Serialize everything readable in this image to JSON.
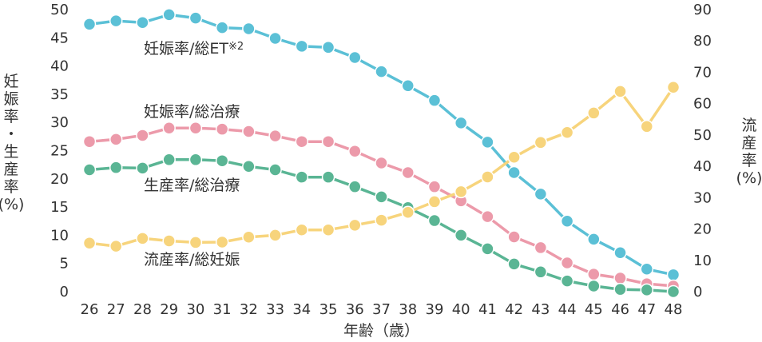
{
  "chart_data": {
    "type": "line",
    "x": [
      26,
      27,
      28,
      29,
      30,
      31,
      32,
      33,
      34,
      35,
      36,
      37,
      38,
      39,
      40,
      41,
      42,
      43,
      44,
      45,
      46,
      47,
      48
    ],
    "xlabel": "年齢（歳）",
    "ylabel_left_lines": [
      "妊",
      "娠",
      "率",
      "・",
      "生",
      "産",
      "率",
      "(%)"
    ],
    "ylabel_right_lines": [
      "流",
      "産",
      "率",
      "(%)"
    ],
    "ylim_left": [
      0,
      50
    ],
    "ylim_right": [
      0,
      90
    ],
    "left_ticks": [
      0,
      5,
      10,
      15,
      20,
      25,
      30,
      35,
      40,
      45,
      50
    ],
    "right_ticks": [
      0,
      10,
      20,
      30,
      40,
      50,
      60,
      70,
      80,
      90
    ],
    "grid": false,
    "series": [
      {
        "name": "妊娠率/総ET※2",
        "axis": "left",
        "color": "#5bc0d6",
        "values": [
          47.4,
          48.0,
          47.7,
          49.1,
          48.5,
          46.8,
          46.6,
          44.9,
          43.5,
          43.3,
          41.5,
          39.0,
          36.5,
          33.9,
          29.9,
          26.5,
          21.1,
          17.3,
          12.5,
          9.3,
          6.9,
          4.0,
          3.0
        ]
      },
      {
        "name": "妊娠率/総治療",
        "axis": "left",
        "color": "#ec9aaa",
        "values": [
          26.6,
          27.0,
          27.7,
          29.0,
          29.0,
          28.8,
          28.4,
          27.6,
          26.6,
          26.6,
          24.9,
          22.8,
          21.1,
          18.6,
          16.1,
          13.3,
          9.7,
          7.8,
          5.1,
          3.1,
          2.4,
          1.4,
          1.0
        ]
      },
      {
        "name": "生産率/総治療",
        "axis": "left",
        "color": "#5ab594",
        "values": [
          21.6,
          22.0,
          21.9,
          23.4,
          23.4,
          23.2,
          22.2,
          21.6,
          20.3,
          20.3,
          18.6,
          16.8,
          14.9,
          12.6,
          10.0,
          7.6,
          4.9,
          3.5,
          1.9,
          1.0,
          0.4,
          0.3,
          0.0
        ]
      },
      {
        "name": "流産率/総妊娠",
        "axis": "right",
        "color": "#f7d47c",
        "values": [
          15.5,
          14.5,
          17.0,
          16.2,
          15.7,
          15.8,
          17.4,
          18.0,
          19.7,
          19.7,
          21.2,
          22.8,
          25.3,
          28.7,
          31.9,
          36.6,
          42.9,
          47.6,
          50.8,
          57.0,
          63.9,
          52.7,
          65.2
        ]
      }
    ],
    "labels": [
      {
        "text": "妊娠率/総ET",
        "sup": "※2",
        "series": 0
      },
      {
        "text": "妊娠率/総治療",
        "sup": "",
        "series": 1
      },
      {
        "text": "生産率/総治療",
        "sup": "",
        "series": 2
      },
      {
        "text": "流産率/総妊娠",
        "sup": "",
        "series": 3
      }
    ]
  }
}
